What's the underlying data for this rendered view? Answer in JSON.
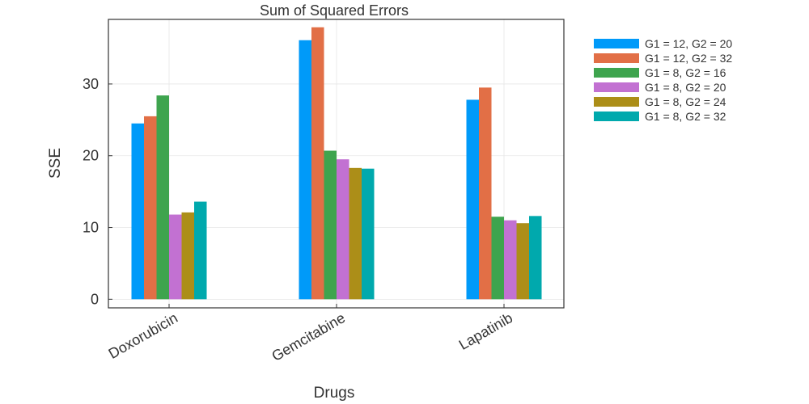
{
  "chart_data": {
    "type": "bar",
    "title": "Sum of Squared Errors",
    "xlabel": "Drugs",
    "ylabel": "SSE",
    "categories": [
      "Doxorubicin",
      "Gemcitabine",
      "Lapatinib"
    ],
    "ylim": [
      -1.2,
      39
    ],
    "yticks": [
      0,
      10,
      20,
      30
    ],
    "grid": true,
    "legend_position": "outer-top-right",
    "series": [
      {
        "name": "G1 = 12, G2 = 20",
        "color": "#009AF9",
        "values": [
          24.5,
          36.1,
          27.8
        ]
      },
      {
        "name": "G1 = 12, G2 = 32",
        "color": "#E26F46",
        "values": [
          25.5,
          37.9,
          29.5
        ]
      },
      {
        "name": "G1 = 8, G2 = 16",
        "color": "#3EA44E",
        "values": [
          28.4,
          20.7,
          11.5
        ]
      },
      {
        "name": "G1 = 8, G2 = 20",
        "color": "#C271D2",
        "values": [
          11.8,
          19.5,
          11.0
        ]
      },
      {
        "name": "G1 = 8, G2 = 24",
        "color": "#AC8E18",
        "values": [
          12.1,
          18.3,
          10.6
        ]
      },
      {
        "name": "G1 = 8, G2 = 32",
        "color": "#00A9AD",
        "values": [
          13.6,
          18.2,
          11.6
        ]
      }
    ]
  }
}
